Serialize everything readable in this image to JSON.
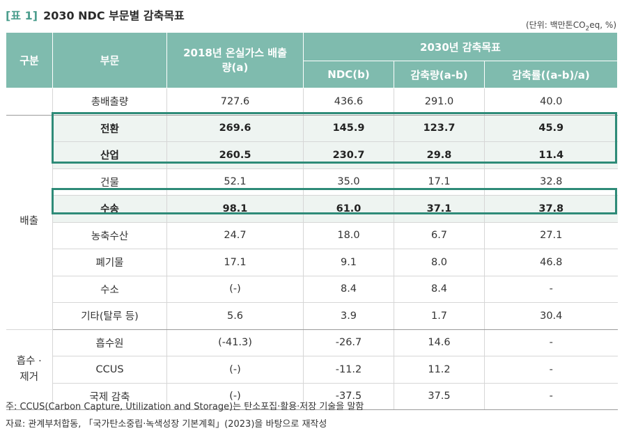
{
  "header": {
    "tag": "[표 1]",
    "title": "2030 NDC 부문별 감축목표",
    "unit_prefix": "(단위: 백만톤CO",
    "unit_sub": "2",
    "unit_suffix": "eq, %)"
  },
  "table": {
    "col_group": "구분",
    "col_sector": "부문",
    "col_2018": "2018년 온실가스 배출량(a)",
    "col_2030": "2030년 감축목표",
    "col_ndc": "NDC(b)",
    "col_reduction": "감축량(a-b)",
    "col_rate": "감축률((a-b)/a)",
    "group_emission": "배출",
    "group_absorb": "흡수 · 제거",
    "total": {
      "sector": "총배출량",
      "v2018": "727.6",
      "ndc": "436.6",
      "red": "291.0",
      "rate": "40.0"
    },
    "emission_rows": [
      {
        "sector": "전환",
        "v2018": "269.6",
        "ndc": "145.9",
        "red": "123.7",
        "rate": "45.9"
      },
      {
        "sector": "산업",
        "v2018": "260.5",
        "ndc": "230.7",
        "red": "29.8",
        "rate": "11.4"
      },
      {
        "sector": "건물",
        "v2018": "52.1",
        "ndc": "35.0",
        "red": "17.1",
        "rate": "32.8"
      },
      {
        "sector": "수송",
        "v2018": "98.1",
        "ndc": "61.0",
        "red": "37.1",
        "rate": "37.8"
      },
      {
        "sector": "농축수산",
        "v2018": "24.7",
        "ndc": "18.0",
        "red": "6.7",
        "rate": "27.1"
      },
      {
        "sector": "폐기물",
        "v2018": "17.1",
        "ndc": "9.1",
        "red": "8.0",
        "rate": "46.8"
      },
      {
        "sector": "수소",
        "v2018": "(-)",
        "ndc": "8.4",
        "red": "8.4",
        "rate": "-"
      },
      {
        "sector": "기타(탈루 등)",
        "v2018": "5.6",
        "ndc": "3.9",
        "red": "1.7",
        "rate": "30.4"
      }
    ],
    "absorb_rows": [
      {
        "sector": "흡수원",
        "v2018": "(-41.3)",
        "ndc": "-26.7",
        "red": "14.6",
        "rate": "-"
      },
      {
        "sector": "CCUS",
        "v2018": "(-)",
        "ndc": "-11.2",
        "red": "11.2",
        "rate": "-"
      },
      {
        "sector": "국제 감축",
        "v2018": "(-)",
        "ndc": "-37.5",
        "red": "37.5",
        "rate": "-"
      }
    ]
  },
  "notes": {
    "note": "주: CCUS(Carbon Capture, Utilization and Storage)는 탄소포집·활용·저장 기술을 말함",
    "source": "자료: 관계부처합동, 「국가탄소중립·녹색성장 기본계획」(2023)을 바탕으로 재작성"
  },
  "colors": {
    "header_bg": "#7fbbae",
    "highlight_border": "#2e8b78",
    "highlight_bg": "#eef4f1",
    "tag": "#4c9e8e"
  }
}
